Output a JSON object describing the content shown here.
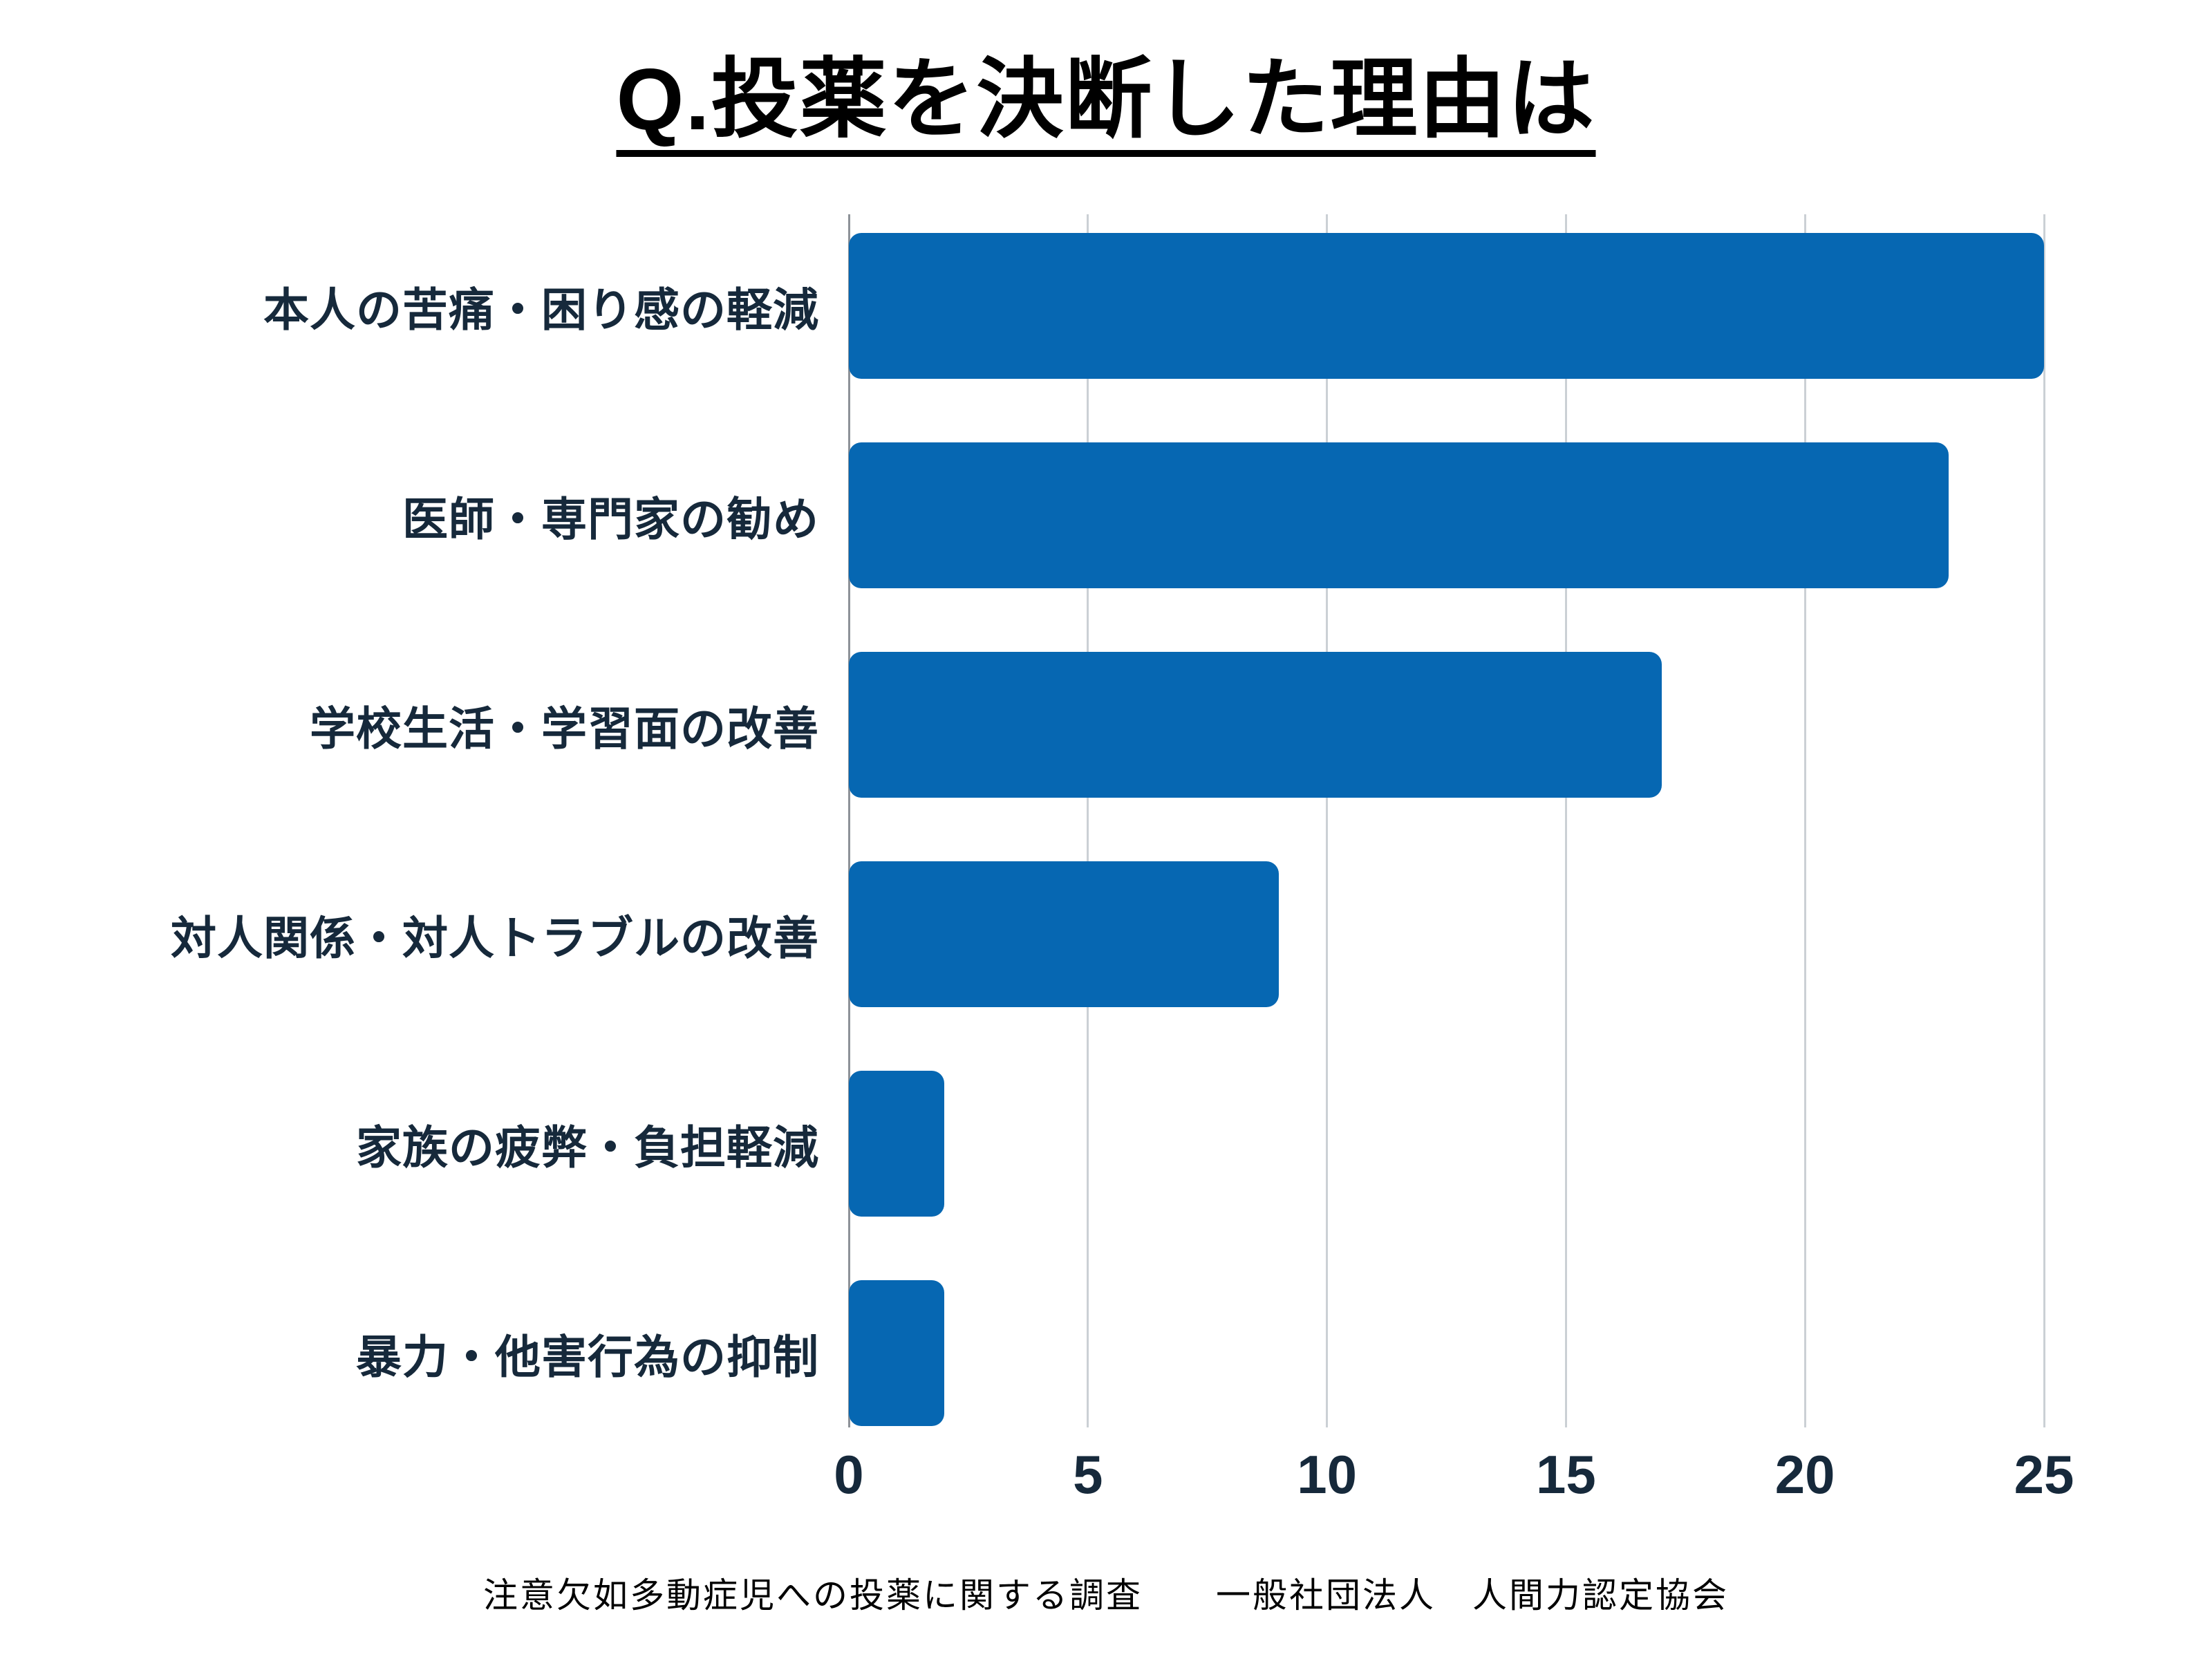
{
  "title": "Q.投薬を決断した理由は",
  "footer": "注意欠如多動症児への投薬に関する調査　　一般社団法人　人間力認定協会",
  "colors": {
    "bar": "#0667B2",
    "category_label": "#16293B",
    "tick_label": "#16293B",
    "gridline": "#CBD0D5",
    "axis_line": "#8D9298",
    "title": "#000000",
    "background": "#FFFFFF"
  },
  "chart_data": {
    "type": "bar",
    "orientation": "horizontal",
    "title": "Q.投薬を決断した理由は",
    "categories": [
      "本人の苦痛・困り感の軽減",
      "医師・専門家の勧め",
      "学校生活・学習面の改善",
      "対人関係・対人トラブルの改善",
      "家族の疲弊・負担軽減",
      "暴力・他害行為の抑制"
    ],
    "values": [
      25,
      23,
      17,
      9,
      2,
      2
    ],
    "xlabel": "",
    "ylabel": "",
    "xlim": [
      0,
      25
    ],
    "xticks": [
      0,
      5,
      10,
      15,
      20,
      25
    ],
    "grid": true,
    "legend": false,
    "source": "注意欠如多動症児への投薬に関する調査　　一般社団法人　人間力認定協会"
  }
}
